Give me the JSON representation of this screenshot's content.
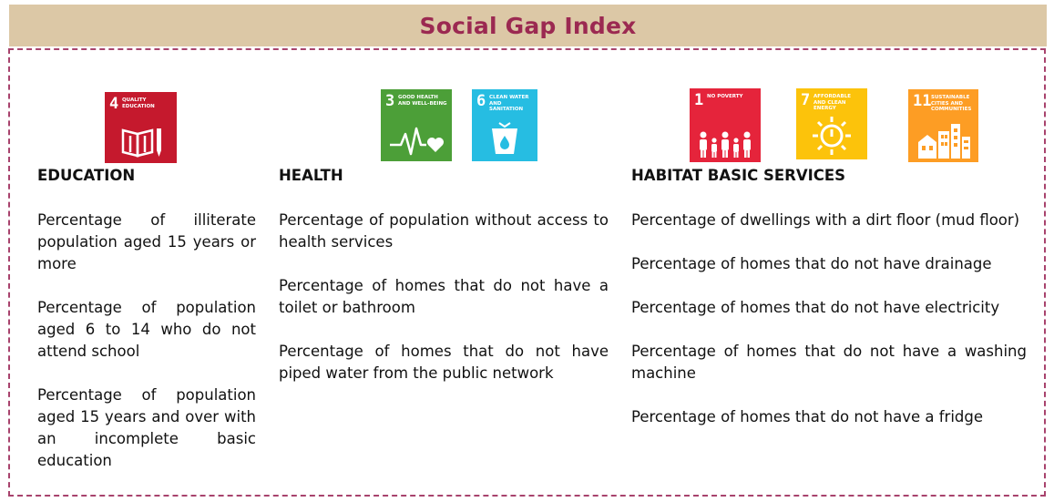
{
  "title": "Social Gap Index",
  "colors": {
    "header_bg": "#dcc8a6",
    "title": "#9b2951",
    "frame": "#a8436d",
    "sdg4": "#c5192d",
    "sdg3": "#4c9f38",
    "sdg6": "#26bde2",
    "sdg1": "#e5243b",
    "sdg7": "#fcc30b",
    "sdg11": "#fd9d24"
  },
  "sdg_icons": {
    "sdg4": {
      "number": "4",
      "label": "QUALITY EDUCATION",
      "icon": "book-pencil-icon"
    },
    "sdg3": {
      "number": "3",
      "label": "GOOD HEALTH AND WELL-BEING",
      "icon": "heartbeat-icon"
    },
    "sdg6": {
      "number": "6",
      "label": "CLEAN WATER AND SANITATION",
      "icon": "water-glass-icon"
    },
    "sdg1": {
      "number": "1",
      "label": "NO POVERTY",
      "icon": "family-icon"
    },
    "sdg7": {
      "number": "7",
      "label": "AFFORDABLE AND CLEAN ENERGY",
      "icon": "sun-power-icon"
    },
    "sdg11": {
      "number": "11",
      "label": "SUSTAINABLE CITIES AND COMMUNITIES",
      "icon": "city-icon"
    }
  },
  "columns": {
    "education": {
      "heading": "EDUCATION",
      "items": [
        "Percentage of illiterate population aged 15 years or more",
        "Percentage of population aged 6 to 14 who do not attend school",
        "Percentage of population aged 15 years and over with an incomplete basic education"
      ]
    },
    "health": {
      "heading": "HEALTH",
      "items": [
        "Percentage of population without access to health services",
        "Percentage of homes that do not have a toilet or bathroom",
        "Percentage of homes that do not have piped water from the public network"
      ]
    },
    "habitat": {
      "heading": "HABITAT BASIC SERVICES",
      "items": [
        "Percentage of dwellings with a dirt floor (mud floor)",
        "Percentage of homes that do not have drainage",
        "Percentage of homes that do not have electricity",
        "Percentage of homes that do not have a washing machine",
        "Percentage of homes that do not have a fridge"
      ]
    }
  }
}
